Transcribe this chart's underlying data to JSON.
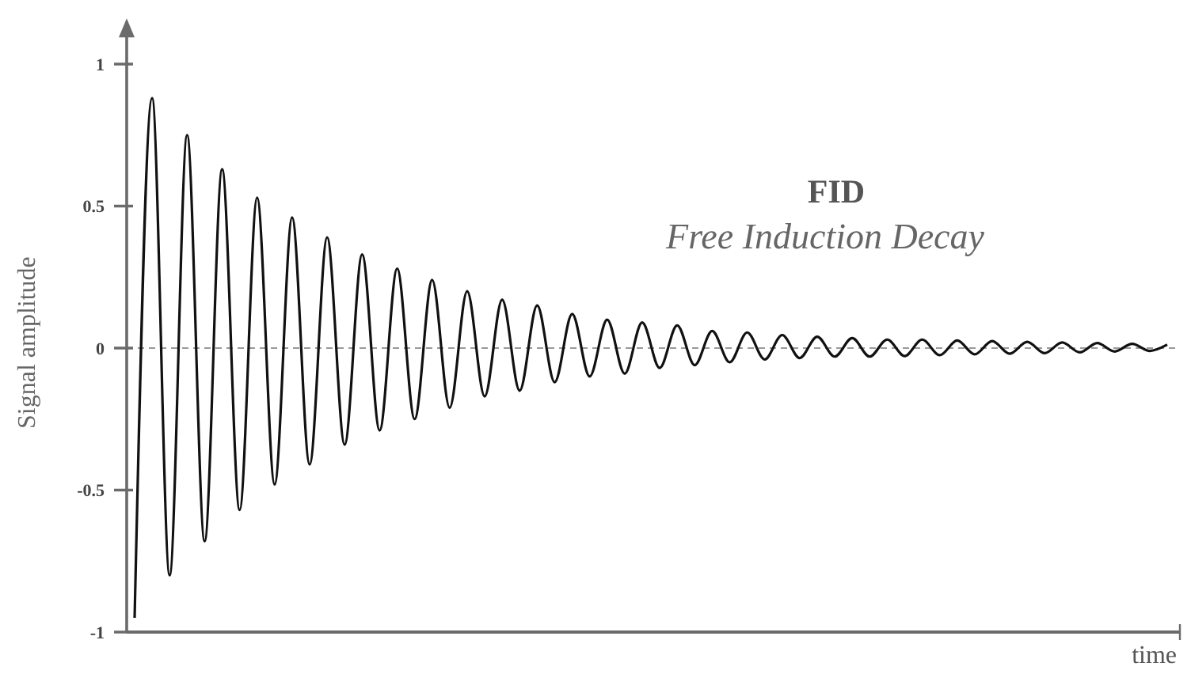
{
  "chart_data": {
    "type": "line",
    "title": "FID",
    "subtitle": "Free Induction Decay",
    "xlabel": "time",
    "ylabel": "Signal amplitude",
    "categories": [
      null,
      null,
      null,
      null,
      null,
      null,
      null,
      null,
      null,
      null,
      null,
      null,
      null,
      null,
      null,
      null,
      null,
      null,
      null,
      null,
      null,
      null,
      null,
      null,
      null,
      null,
      null,
      null,
      null,
      null,
      null,
      null,
      null,
      null,
      null,
      null,
      null,
      null,
      null,
      null,
      null,
      null,
      null,
      null,
      null,
      null,
      null,
      null,
      null,
      null,
      null,
      null,
      null,
      null,
      null,
      null,
      null,
      null,
      null,
      null
    ],
    "series": [
      {
        "color": "#111111",
        "values": [
          -0.95,
          0.88,
          -0.8,
          0.75,
          -0.68,
          0.63,
          -0.57,
          0.53,
          -0.48,
          0.46,
          -0.41,
          0.39,
          -0.34,
          0.33,
          -0.29,
          0.28,
          -0.25,
          0.24,
          -0.21,
          0.2,
          -0.17,
          0.17,
          -0.15,
          0.15,
          -0.12,
          0.12,
          -0.1,
          0.1,
          -0.09,
          0.09,
          -0.07,
          0.08,
          -0.06,
          0.06,
          -0.05,
          0.055,
          -0.04,
          0.046,
          -0.035,
          0.04,
          -0.03,
          0.035,
          -0.03,
          0.03,
          -0.028,
          0.03,
          -0.025,
          0.027,
          -0.022,
          0.025,
          -0.02,
          0.022,
          -0.018,
          0.02,
          -0.015,
          0.018,
          -0.012,
          0.015,
          -0.01,
          0.012
        ]
      }
    ],
    "ylim": [
      -1,
      1.15
    ],
    "yticks": [
      -1,
      -0.5,
      0,
      0.5,
      1
    ],
    "ref_lines": [
      {
        "axis": "y",
        "value": 0,
        "color": "#999999",
        "line_style": "dashed"
      }
    ],
    "grid": false,
    "marker": "none",
    "line_style": "solid"
  }
}
